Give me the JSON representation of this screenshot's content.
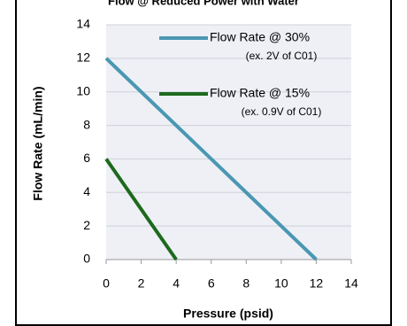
{
  "chart_data": {
    "type": "line",
    "title": "Flow @ Reduced Power with Water",
    "x_label": "Pressure (psid)",
    "y_label": "Flow Rate (mL/min)",
    "series": [
      {
        "name": "Flow Rate @ 30%",
        "legend_note": "(ex. 2V of C01)",
        "color": "#4a97b3",
        "x": [
          0,
          12
        ],
        "values": [
          12,
          0
        ]
      },
      {
        "name": "Flow Rate @ 15%",
        "legend_note": "(ex. 0.9V of C01)",
        "color": "#1d6a1d",
        "x": [
          0,
          4
        ],
        "values": [
          6,
          0
        ]
      }
    ],
    "xlim": [
      0,
      14
    ],
    "xticks": [
      0,
      2,
      4,
      6,
      8,
      10,
      12,
      14
    ],
    "ylim": [
      0,
      14
    ],
    "yticks": [
      0,
      2,
      4,
      6,
      8,
      10,
      12,
      14
    ],
    "grid": true
  }
}
